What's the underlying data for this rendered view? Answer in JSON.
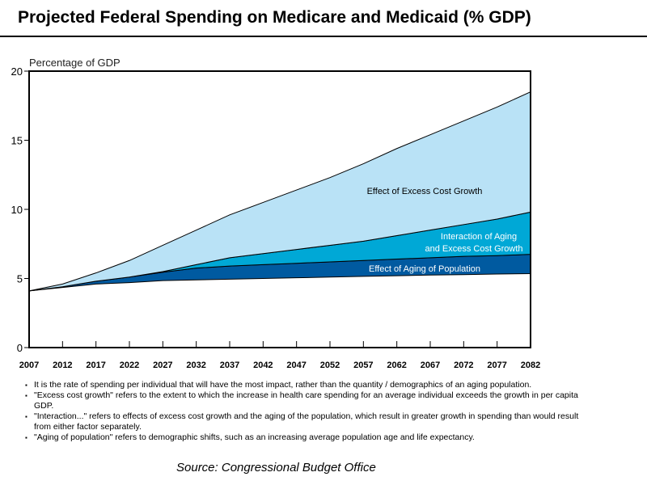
{
  "title": "Projected Federal Spending on Medicare and Medicaid (% GDP)",
  "chart_data": {
    "type": "area",
    "stacked": true,
    "ylabel": "Percentage of GDP",
    "xlabel": "",
    "ylim": [
      0,
      20
    ],
    "xlim": [
      2007,
      2082
    ],
    "yticks": [
      0,
      5,
      10,
      15,
      20
    ],
    "xticks": [
      2007,
      2012,
      2017,
      2022,
      2027,
      2032,
      2037,
      2042,
      2047,
      2052,
      2057,
      2062,
      2067,
      2072,
      2077,
      2082
    ],
    "grid": false,
    "x": [
      2007,
      2012,
      2017,
      2022,
      2027,
      2032,
      2037,
      2042,
      2047,
      2052,
      2057,
      2062,
      2067,
      2072,
      2077,
      2082
    ],
    "baseline": [
      4.1,
      4.35,
      4.6,
      4.7,
      4.85,
      4.9,
      4.95,
      5.0,
      5.05,
      5.1,
      5.15,
      5.2,
      5.25,
      5.28,
      5.32,
      5.35
    ],
    "series": [
      {
        "name": "Effect of Aging of Population",
        "color": "#005aa0",
        "top": [
          4.1,
          4.4,
          4.8,
          5.1,
          5.45,
          5.75,
          5.9,
          6.0,
          6.1,
          6.2,
          6.3,
          6.4,
          6.5,
          6.6,
          6.65,
          6.75
        ]
      },
      {
        "name": "Interaction of Aging and Excess Cost Growth",
        "color": "#00a8d6",
        "top": [
          4.1,
          4.4,
          4.8,
          5.1,
          5.5,
          6.0,
          6.5,
          6.8,
          7.1,
          7.4,
          7.7,
          8.1,
          8.5,
          8.9,
          9.3,
          9.8
        ]
      },
      {
        "name": "Effect of Excess Cost Growth",
        "color": "#b9e2f6",
        "top": [
          4.1,
          4.6,
          5.4,
          6.3,
          7.4,
          8.5,
          9.6,
          10.5,
          11.4,
          12.3,
          13.3,
          14.4,
          15.4,
          16.4,
          17.4,
          18.5
        ]
      }
    ],
    "annotations": [
      "Effect of Excess Cost Growth",
      "Interaction of Aging",
      "and Excess Cost Growth",
      "Effect of Aging of Population"
    ]
  },
  "notes": [
    "It is the rate of spending per individual that will have the most impact, rather than the quantity / demographics of an aging population.",
    "\"Excess cost growth\" refers to the extent to which the increase in health care spending for an average individual exceeds the growth in per capita GDP.",
    "\"Interaction...\" refers to effects of excess cost growth and the aging of the population, which result in greater growth in spending than would result from either factor separately.",
    "\"Aging of population\" refers to demographic shifts, such as an increasing average population age and life expectancy."
  ],
  "source": "Source:  Congressional Budget Office"
}
